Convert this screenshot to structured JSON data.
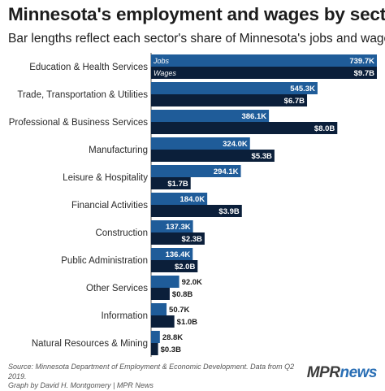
{
  "title": "Minnesota's employment and wages by sector",
  "subtitle": "Bar lengths reflect each sector's share of Minnesota's jobs and wages.",
  "source_lines": [
    "Source: Minnesota Department of Employment & Economic Development. Data from Q2 2019.",
    "Graph by David H. Montgomery | MPR News"
  ],
  "logo": {
    "part1": "MPR",
    "part2": "news"
  },
  "colors": {
    "jobs": "#1f5c99",
    "wages": "#0b1f3a",
    "axis": "#555555"
  },
  "chart_data": {
    "type": "bar",
    "orientation": "horizontal",
    "categories": [
      "Education & Health Services",
      "Trade, Transportation & Utilities",
      "Professional & Business Services",
      "Manufacturing",
      "Leisure & Hospitality",
      "Financial Activities",
      "Construction",
      "Public Administration",
      "Other Services",
      "Information",
      "Natural Resources & Mining"
    ],
    "series": [
      {
        "name": "Jobs",
        "values": [
          739.7,
          545.3,
          386.1,
          324.0,
          294.1,
          184.0,
          137.3,
          136.4,
          92.0,
          50.7,
          28.8
        ],
        "labels": [
          "739.7K",
          "545.3K",
          "386.1K",
          "324.0K",
          "294.1K",
          "184.0K",
          "137.3K",
          "136.4K",
          "92.0K",
          "50.7K",
          "28.8K"
        ],
        "unit": "thousand jobs"
      },
      {
        "name": "Wages",
        "values": [
          9.7,
          6.7,
          8.0,
          5.3,
          1.7,
          3.9,
          2.3,
          2.0,
          0.8,
          1.0,
          0.3
        ],
        "labels": [
          "$9.7B",
          "$6.7B",
          "$8.0B",
          "$5.3B",
          "$1.7B",
          "$3.9B",
          "$2.3B",
          "$2.0B",
          "$0.8B",
          "$1.0B",
          "$0.3B"
        ],
        "unit": "billion dollars"
      }
    ],
    "legend_placement": "inline on first bars",
    "grid": false
  }
}
